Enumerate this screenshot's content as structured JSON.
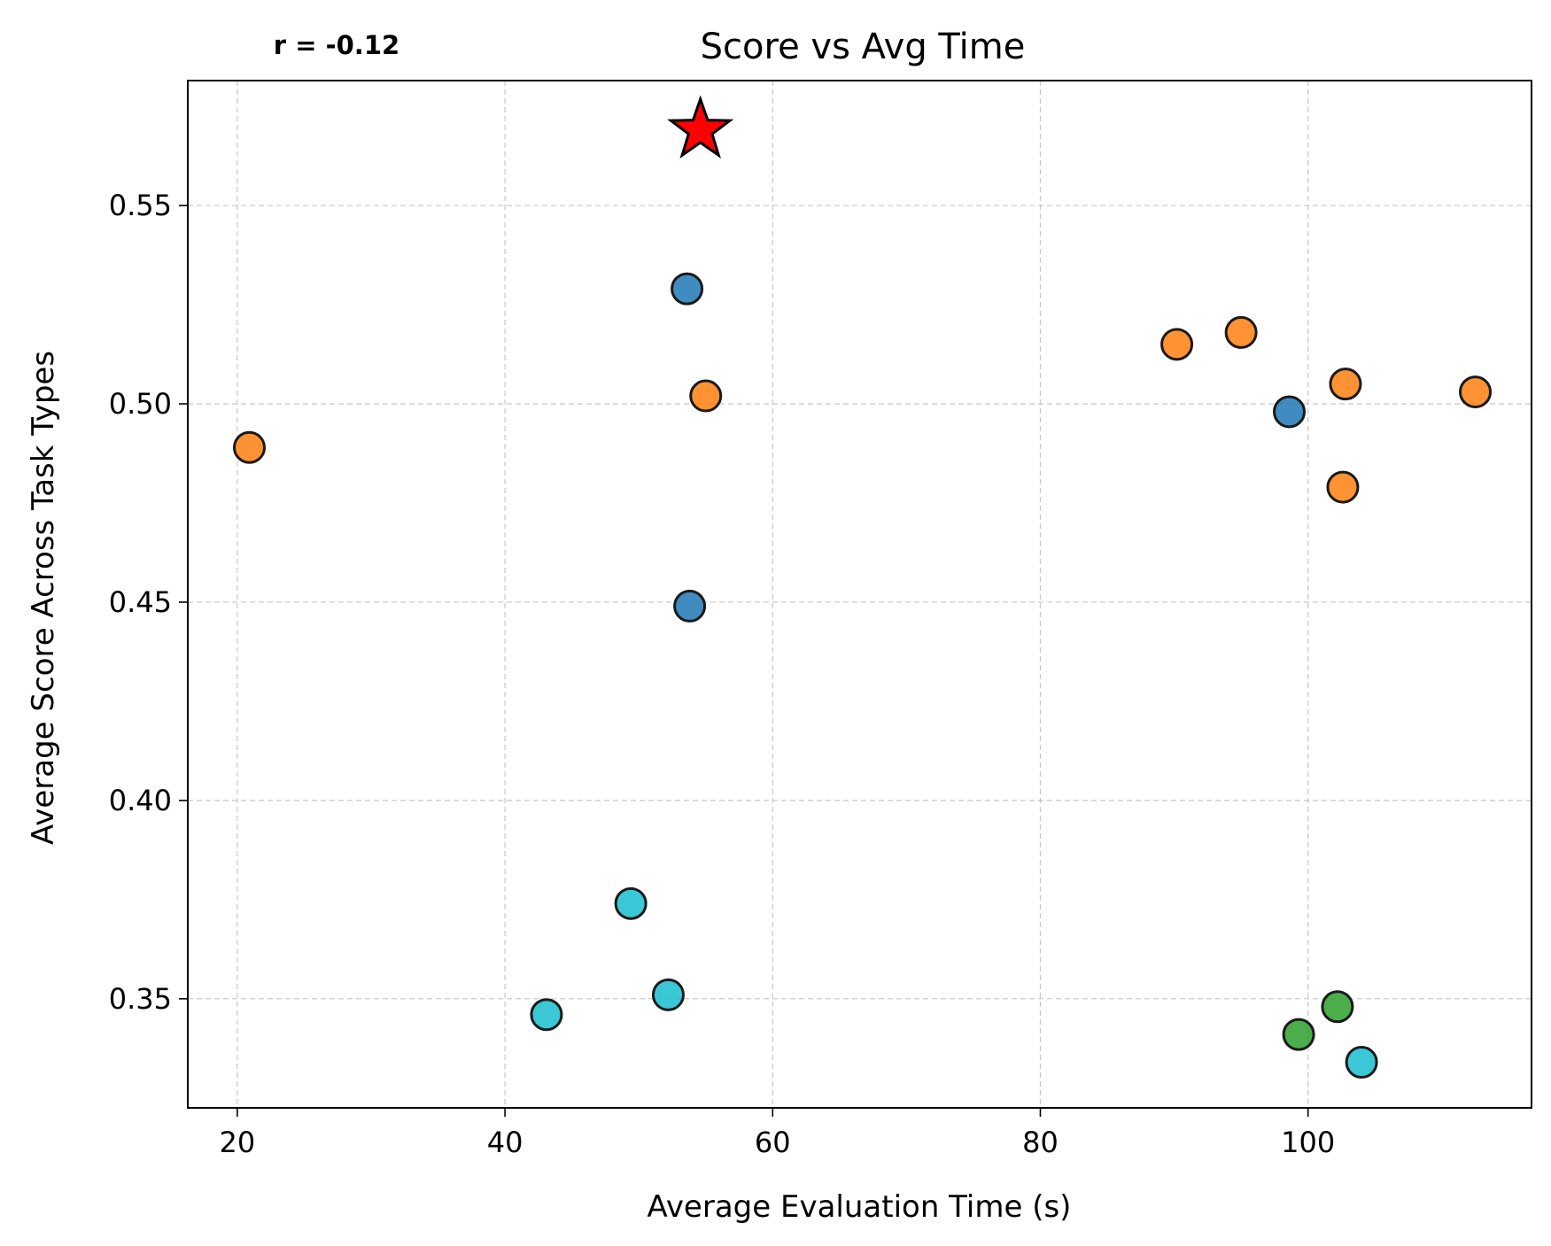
{
  "chart_data": {
    "type": "scatter",
    "title": "Score vs Avg Time",
    "annotation": "r = -0.12",
    "xlabel": "Average Evaluation Time (s)",
    "ylabel": "Average Score Across Task Types",
    "xlim": [
      16.3,
      116.7
    ],
    "ylim": [
      0.3225,
      0.5815
    ],
    "xticks": [
      20,
      40,
      60,
      80,
      100
    ],
    "yticks": [
      0.35,
      0.4,
      0.45,
      0.5,
      0.55
    ],
    "xtick_labels": [
      "20",
      "40",
      "60",
      "80",
      "100"
    ],
    "ytick_labels": [
      "0.35",
      "0.40",
      "0.45",
      "0.50",
      "0.55"
    ],
    "grid": true,
    "colors": {
      "blue": "#1f77b4",
      "orange": "#ff7f0e",
      "green": "#2ca02c",
      "cyan": "#17becf",
      "star": "#ff0000"
    },
    "points": [
      {
        "x": 53.6,
        "y": 0.529,
        "color": "#1f77b4"
      },
      {
        "x": 53.8,
        "y": 0.449,
        "color": "#1f77b4"
      },
      {
        "x": 98.6,
        "y": 0.498,
        "color": "#1f77b4"
      },
      {
        "x": 20.9,
        "y": 0.489,
        "color": "#ff7f0e"
      },
      {
        "x": 55.0,
        "y": 0.502,
        "color": "#ff7f0e"
      },
      {
        "x": 90.2,
        "y": 0.515,
        "color": "#ff7f0e"
      },
      {
        "x": 95.0,
        "y": 0.518,
        "color": "#ff7f0e"
      },
      {
        "x": 102.8,
        "y": 0.505,
        "color": "#ff7f0e"
      },
      {
        "x": 102.6,
        "y": 0.479,
        "color": "#ff7f0e"
      },
      {
        "x": 112.5,
        "y": 0.503,
        "color": "#ff7f0e"
      },
      {
        "x": 99.3,
        "y": 0.341,
        "color": "#2ca02c"
      },
      {
        "x": 102.2,
        "y": 0.348,
        "color": "#2ca02c"
      },
      {
        "x": 49.4,
        "y": 0.374,
        "color": "#17becf"
      },
      {
        "x": 43.1,
        "y": 0.346,
        "color": "#17becf"
      },
      {
        "x": 52.2,
        "y": 0.351,
        "color": "#17becf"
      },
      {
        "x": 104.0,
        "y": 0.334,
        "color": "#17becf"
      }
    ],
    "highlight": {
      "x": 54.6,
      "y": 0.569,
      "marker": "star",
      "color": "#ff0000"
    }
  }
}
